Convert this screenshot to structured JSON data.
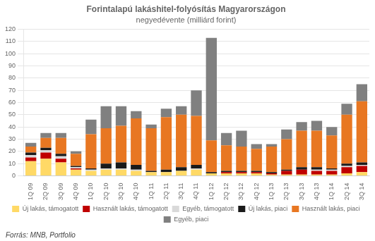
{
  "chart_data": {
    "type": "bar",
    "stacked": true,
    "title": "Forintalapú lakáshitel-folyósítás Magyarországon",
    "subtitle": "negyedévente (milliárd forint)",
    "annotations": [
      "Forrás: MNB, Portfolio"
    ],
    "categories": [
      "1Q 09",
      "2Q 09",
      "3Q 09",
      "4Q 09",
      "1Q 10",
      "2Q 10",
      "3Q 10",
      "4Q 10",
      "1Q 11",
      "2Q 11",
      "3Q 11",
      "4Q 11",
      "1Q 12",
      "2Q 12",
      "3Q 12",
      "4Q 12",
      "1Q 13",
      "2Q 13",
      "3Q 13",
      "4Q 13",
      "1Q 14",
      "2Q 14",
      "3Q 14"
    ],
    "series": [
      {
        "name": "Új lakás, támogatott",
        "color": "#FFD966",
        "values": [
          12,
          14,
          11,
          5,
          4,
          5,
          5,
          4,
          3,
          3,
          4,
          5,
          2,
          2,
          2,
          2,
          1,
          1,
          1,
          1,
          1,
          2,
          3
        ]
      },
      {
        "name": "Használt lakás, támogatott",
        "color": "#C00000",
        "values": [
          3,
          5,
          3,
          1,
          0,
          0,
          0,
          0,
          0,
          0,
          0,
          0,
          0,
          1,
          1,
          1,
          1,
          3,
          4,
          3,
          3,
          5,
          5
        ]
      },
      {
        "name": "Egyéb, támogatott",
        "color": "#D9D9D9",
        "values": [
          2,
          2,
          2,
          1,
          1,
          1,
          1,
          1,
          0,
          0,
          0,
          1,
          0,
          0,
          0,
          0,
          0,
          0,
          0,
          1,
          1,
          1,
          1
        ]
      },
      {
        "name": "Új lakás, piaci",
        "color": "#1A1A1A",
        "values": [
          2,
          2,
          2,
          1,
          1,
          4,
          5,
          4,
          1,
          2,
          3,
          3,
          1,
          1,
          1,
          1,
          1,
          1,
          2,
          2,
          1,
          2,
          2
        ]
      },
      {
        "name": "Használt lakás, piaci",
        "color": "#E87722",
        "values": [
          5,
          8,
          13,
          10,
          28,
          29,
          30,
          38,
          35,
          43,
          43,
          40,
          26,
          21,
          20,
          18,
          21,
          25,
          30,
          30,
          27,
          40,
          50
        ]
      },
      {
        "name": "Egyéb, piaci",
        "color": "#808080",
        "values": [
          3,
          4,
          4,
          2,
          12,
          18,
          16,
          6,
          3,
          7,
          7,
          21,
          84,
          10,
          13,
          4,
          2,
          8,
          7,
          8,
          7,
          9,
          14
        ]
      }
    ],
    "ylim": [
      0,
      120
    ],
    "yticks": [
      0,
      10,
      20,
      30,
      40,
      50,
      60,
      70,
      80,
      90,
      100,
      110,
      120
    ],
    "grid": true,
    "legend": "bottom"
  }
}
